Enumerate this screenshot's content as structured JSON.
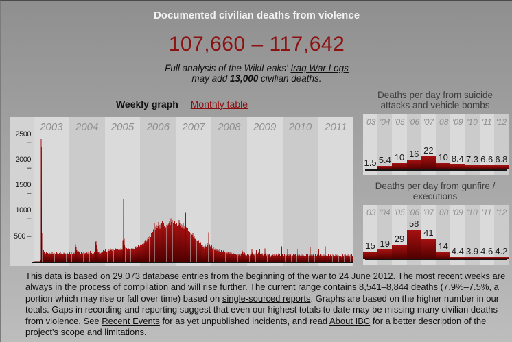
{
  "page": {
    "title": "Documented civilian deaths from violence",
    "range": "107,660 – 117,642",
    "subtitle": {
      "line1_prefix": "Full analysis of the WikiLeaks' ",
      "line1_link": "Iraq War Logs",
      "line2_pre": "may add ",
      "line2_bold": "13,000",
      "line2_post": " civilian deaths."
    }
  },
  "graph_header": {
    "weekly_label": "Weekly graph",
    "monthly_link": "Monthly table"
  },
  "colors": {
    "accent_red": "#8c1212",
    "bar_top": "#a81111",
    "bar_bottom": "#4f0000",
    "baseline": "#151515",
    "chart_bg_light": "#dadada",
    "chart_bg_dark": "#cbcbcb"
  },
  "chart_data": [
    {
      "type": "bar",
      "name": "weekly-civilian-deaths",
      "x_labels": [
        "2003",
        "2004",
        "2005",
        "2006",
        "2007",
        "2008",
        "2009",
        "2010",
        "2011"
      ],
      "y_ticks_display": [
        2500,
        2000,
        1500,
        1000,
        500
      ],
      "ylim": [
        0,
        2500
      ],
      "grid": false,
      "values": [
        3,
        4,
        3,
        5,
        4,
        6,
        5,
        7,
        6,
        10,
        30,
        2400,
        2250,
        560,
        320,
        230,
        200,
        185,
        170,
        190,
        160,
        175,
        150,
        165,
        180,
        155,
        170,
        160,
        185,
        150,
        165,
        200,
        175,
        160,
        230,
        185,
        170,
        160,
        150,
        175,
        165,
        190,
        155,
        170,
        160,
        150,
        180,
        165,
        155,
        170,
        160,
        150,
        165,
        150,
        170,
        185,
        160,
        175,
        190,
        160,
        150,
        170,
        180,
        155,
        340,
        290,
        230,
        200,
        185,
        210,
        190,
        175,
        160,
        185,
        200,
        170,
        190,
        160,
        150,
        175,
        165,
        190,
        180,
        160,
        200,
        185,
        170,
        215,
        190,
        175,
        160,
        150,
        170,
        185,
        160,
        390,
        410,
        330,
        240,
        200,
        185,
        170,
        160,
        175,
        195,
        210,
        185,
        230,
        200,
        215,
        250,
        220,
        195,
        210,
        230,
        250,
        215,
        235,
        260,
        225,
        240,
        215,
        235,
        250,
        230,
        245,
        260,
        240,
        225,
        250,
        235,
        255,
        240,
        230,
        260,
        245,
        235,
        420,
        1220,
        460,
        320,
        280,
        300,
        265,
        250,
        285,
        260,
        240,
        270,
        255,
        245,
        265,
        250,
        260,
        240,
        255,
        280,
        300,
        265,
        310,
        290,
        320,
        340,
        300,
        330,
        360,
        320,
        350,
        380,
        340,
        370,
        400,
        430,
        390,
        420,
        460,
        480,
        440,
        500,
        530,
        480,
        560,
        520,
        590,
        640,
        580,
        760,
        690,
        620,
        720,
        660,
        700,
        780,
        710,
        650,
        730,
        690,
        750,
        800,
        720,
        760,
        700,
        740,
        680,
        720,
        760,
        700,
        730,
        750,
        800,
        720,
        850,
        780,
        950,
        820,
        760,
        880,
        800,
        740,
        820,
        760,
        700,
        780,
        720,
        820,
        760,
        700,
        740,
        680,
        720,
        760,
        650,
        700,
        640,
        960,
        680,
        620,
        660,
        600,
        640,
        580,
        560,
        600,
        540,
        520,
        560,
        480,
        500,
        460,
        440,
        480,
        420,
        400,
        380,
        420,
        360,
        340,
        380,
        320,
        300,
        320,
        280,
        300,
        260,
        340,
        300,
        280,
        320,
        360,
        570,
        420,
        340,
        300,
        280,
        320,
        260,
        240,
        280,
        250,
        230,
        260,
        240,
        220,
        250,
        230,
        210,
        240,
        220,
        200,
        230,
        210,
        190,
        220,
        240,
        200,
        180,
        210,
        190,
        170,
        200,
        180,
        160,
        190,
        170,
        150,
        180,
        160,
        150,
        170,
        160,
        150,
        160,
        140,
        120,
        150,
        130,
        160,
        140,
        120,
        150,
        170,
        220,
        190,
        150,
        260,
        180,
        140,
        160,
        130,
        150,
        170,
        140,
        120,
        150,
        130,
        160,
        250,
        180,
        140,
        160,
        130,
        150,
        170,
        230,
        140,
        160,
        180,
        140,
        250,
        160,
        130,
        150,
        170,
        140,
        120,
        150,
        260,
        170,
        140,
        120,
        150,
        130,
        140,
        150,
        120,
        100,
        130,
        110,
        140,
        120,
        150,
        130,
        110,
        140,
        160,
        120,
        140,
        170,
        130,
        150,
        110,
        130,
        300,
        160,
        140,
        120,
        150,
        130,
        160,
        110,
        140,
        250,
        120,
        150,
        130,
        160,
        140,
        110,
        220,
        130,
        150,
        120,
        140,
        160,
        130,
        110,
        250,
        140,
        120,
        150,
        130,
        110,
        140,
        120,
        150,
        130,
        130,
        110,
        140,
        120,
        150,
        130,
        160,
        110,
        140,
        120,
        280,
        130,
        150,
        120,
        140,
        160,
        130,
        110,
        150,
        130,
        120,
        140,
        110,
        250,
        130,
        150,
        120,
        140,
        110,
        130,
        160,
        120,
        140,
        300,
        130,
        110,
        140,
        120,
        150,
        130,
        110,
        140,
        260,
        120,
        150,
        130,
        140,
        120,
        110,
        150,
        130,
        140,
        120,
        100,
        130,
        110,
        140,
        120,
        100,
        130,
        150,
        110,
        140,
        120,
        160,
        130,
        110,
        140,
        120,
        150,
        100,
        130,
        140,
        110,
        150,
        120,
        160
      ]
    },
    {
      "type": "bar",
      "name": "deaths-per-day-suicide-attacks",
      "title_lines": [
        "Deaths per day from suicide",
        "attacks and vehicle bombs"
      ],
      "categories": [
        "'03",
        "'04",
        "'05",
        "'06",
        "'07",
        "'08",
        "'09",
        "'10",
        "'11",
        "'12"
      ],
      "values": [
        1.5,
        5.4,
        10,
        16,
        22,
        10,
        8.4,
        7.3,
        6.6,
        6.8
      ]
    },
    {
      "type": "bar",
      "name": "deaths-per-day-gunfire-executions",
      "title_lines": [
        "Deaths per day from gunfire /",
        "executions"
      ],
      "categories": [
        "'03",
        "'04",
        "'05",
        "'06",
        "'07",
        "'08",
        "'09",
        "'10",
        "'11",
        "'12"
      ],
      "values": [
        15,
        19,
        29,
        58,
        41,
        14,
        4.4,
        3.9,
        4.6,
        4.2
      ]
    }
  ],
  "footer": {
    "text1": "This data is based on 29,073 database entries from the beginning of the war to 24 June 2012. The most recent weeks are always in the process of compilation and will rise further. The current range contains 8,541–8,844 deaths (7.9%–7.5%, a portion which may rise or fall over time) based on ",
    "link1": "single-sourced reports",
    "text2": ". Graphs are based on the higher number in our totals. Gaps in recording and reporting suggest that even our highest totals to date may be missing many civilian deaths from violence. See ",
    "link2": "Recent Events",
    "text3": " for as yet unpublished incidents, and read ",
    "link3": "About IBC",
    "text4": " for a better description of the project's scope and limitations."
  }
}
